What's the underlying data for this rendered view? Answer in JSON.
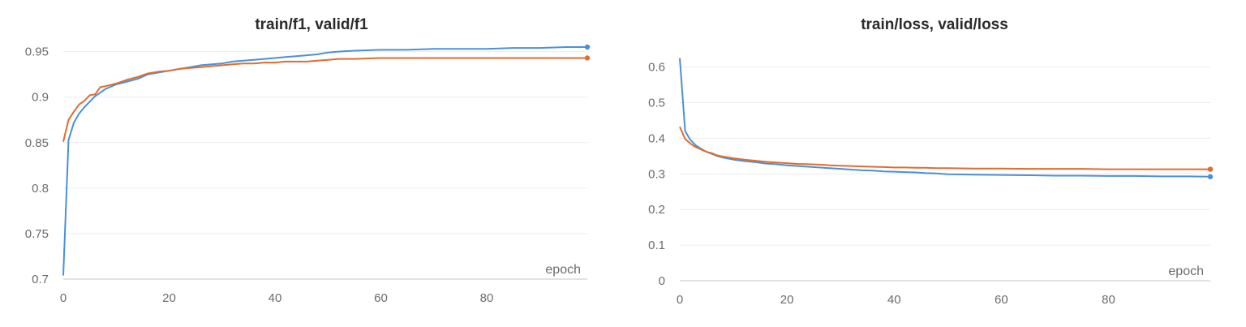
{
  "chart_data": [
    {
      "type": "line",
      "title": "train/f1, valid/f1",
      "xlabel": "epoch",
      "ylabel": "",
      "xlim": [
        0,
        99
      ],
      "ylim": [
        0.7,
        0.955
      ],
      "xticks": [
        0,
        20,
        40,
        60,
        80
      ],
      "yticks": [
        0.7,
        0.75,
        0.8,
        0.85,
        0.9,
        0.95
      ],
      "ytick_labels": [
        "0.7",
        "0.75",
        "0.8",
        "0.85",
        "0.9",
        "0.95"
      ],
      "grid": true,
      "series": [
        {
          "color": "#4a90d9",
          "x": [
            0,
            1,
            2,
            3,
            4,
            5,
            6,
            7,
            8,
            10,
            12,
            14,
            16,
            18,
            20,
            22,
            24,
            26,
            28,
            30,
            32,
            34,
            36,
            38,
            40,
            42,
            44,
            46,
            48,
            50,
            52,
            55,
            60,
            65,
            70,
            75,
            80,
            85,
            90,
            95,
            99
          ],
          "y": [
            0.704,
            0.853,
            0.872,
            0.882,
            0.889,
            0.895,
            0.901,
            0.905,
            0.909,
            0.914,
            0.917,
            0.92,
            0.925,
            0.927,
            0.929,
            0.931,
            0.933,
            0.935,
            0.936,
            0.937,
            0.939,
            0.94,
            0.941,
            0.942,
            0.943,
            0.944,
            0.945,
            0.946,
            0.947,
            0.949,
            0.95,
            0.951,
            0.952,
            0.952,
            0.953,
            0.953,
            0.953,
            0.954,
            0.954,
            0.955,
            0.955
          ]
        },
        {
          "color": "#e06c2e",
          "x": [
            0,
            1,
            2,
            3,
            4,
            5,
            6,
            7,
            8,
            10,
            12,
            14,
            16,
            18,
            20,
            22,
            24,
            26,
            28,
            30,
            32,
            34,
            36,
            38,
            40,
            42,
            44,
            46,
            48,
            50,
            52,
            55,
            60,
            65,
            70,
            75,
            80,
            85,
            90,
            95,
            99
          ],
          "y": [
            0.851,
            0.875,
            0.884,
            0.892,
            0.896,
            0.902,
            0.903,
            0.911,
            0.912,
            0.915,
            0.919,
            0.922,
            0.926,
            0.928,
            0.929,
            0.931,
            0.932,
            0.933,
            0.934,
            0.935,
            0.936,
            0.937,
            0.937,
            0.938,
            0.938,
            0.939,
            0.939,
            0.939,
            0.94,
            0.941,
            0.942,
            0.942,
            0.943,
            0.943,
            0.943,
            0.943,
            0.943,
            0.943,
            0.943,
            0.943,
            0.943
          ]
        }
      ]
    },
    {
      "type": "line",
      "title": "train/loss, valid/loss",
      "xlabel": "epoch",
      "ylabel": "",
      "xlim": [
        0,
        99
      ],
      "ylim": [
        0,
        0.64
      ],
      "xticks": [
        0,
        20,
        40,
        60,
        80
      ],
      "yticks": [
        0,
        0.1,
        0.2,
        0.3,
        0.4,
        0.5,
        0.6
      ],
      "ytick_labels": [
        "0",
        "0.1",
        "0.2",
        "0.3",
        "0.4",
        "0.5",
        "0.6"
      ],
      "grid": true,
      "series": [
        {
          "color": "#4a90d9",
          "x": [
            0,
            1,
            2,
            3,
            4,
            5,
            6,
            7,
            8,
            10,
            12,
            14,
            16,
            18,
            20,
            22,
            24,
            26,
            28,
            30,
            32,
            34,
            36,
            38,
            40,
            42,
            44,
            46,
            48,
            50,
            55,
            60,
            65,
            70,
            75,
            80,
            85,
            90,
            95,
            99
          ],
          "y": [
            0.625,
            0.42,
            0.395,
            0.38,
            0.37,
            0.362,
            0.356,
            0.35,
            0.346,
            0.34,
            0.336,
            0.333,
            0.329,
            0.327,
            0.324,
            0.322,
            0.32,
            0.318,
            0.316,
            0.314,
            0.312,
            0.31,
            0.309,
            0.307,
            0.306,
            0.305,
            0.304,
            0.302,
            0.301,
            0.299,
            0.298,
            0.297,
            0.296,
            0.295,
            0.295,
            0.294,
            0.294,
            0.293,
            0.293,
            0.292
          ]
        },
        {
          "color": "#e06c2e",
          "x": [
            0,
            1,
            2,
            3,
            4,
            5,
            6,
            7,
            8,
            10,
            12,
            14,
            16,
            18,
            20,
            22,
            24,
            26,
            28,
            30,
            32,
            34,
            36,
            38,
            40,
            42,
            44,
            46,
            48,
            50,
            55,
            60,
            65,
            70,
            75,
            80,
            85,
            90,
            95,
            99
          ],
          "y": [
            0.432,
            0.398,
            0.385,
            0.375,
            0.368,
            0.362,
            0.358,
            0.352,
            0.349,
            0.344,
            0.34,
            0.337,
            0.334,
            0.332,
            0.33,
            0.328,
            0.327,
            0.326,
            0.324,
            0.323,
            0.322,
            0.321,
            0.32,
            0.319,
            0.318,
            0.318,
            0.317,
            0.317,
            0.316,
            0.316,
            0.315,
            0.315,
            0.314,
            0.314,
            0.314,
            0.313,
            0.313,
            0.313,
            0.313,
            0.313
          ]
        }
      ]
    }
  ]
}
